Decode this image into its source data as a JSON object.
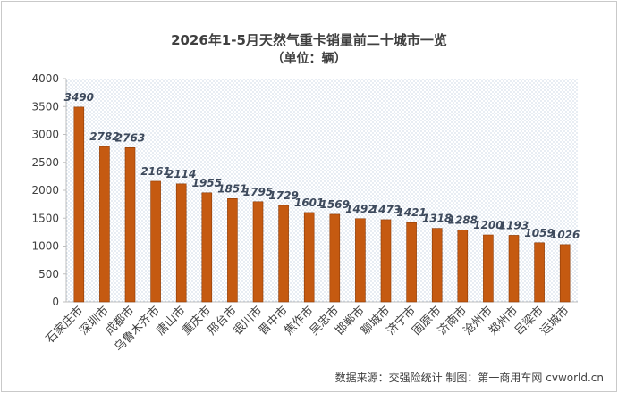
{
  "title": "2026年1-5月天然气重卡销量前二十城市一览",
  "subtitle": "（单位：辆）",
  "source": "数据来源：交强险统计  制图：第一商用车网 cvworld.cn",
  "colors": {
    "bar": "#C55A11",
    "bar_edge": "#8B3A06",
    "label": "#3E4A5C",
    "axis_text": "#404040",
    "plot_bg": "#ECF1F6"
  },
  "chart_data": {
    "type": "bar",
    "categories": [
      "石家庄市",
      "深圳市",
      "成都市",
      "乌鲁木齐市",
      "唐山市",
      "重庆市",
      "邢台市",
      "银川市",
      "晋中市",
      "焦作市",
      "吴忠市",
      "邯郸市",
      "聊城市",
      "济宁市",
      "固原市",
      "济南市",
      "沧州市",
      "郑州市",
      "吕梁市",
      "运城市"
    ],
    "values": [
      3490,
      2782,
      2763,
      2161,
      2114,
      1955,
      1851,
      1795,
      1729,
      1601,
      1569,
      1492,
      1473,
      1421,
      1318,
      1288,
      1200,
      1193,
      1059,
      1026
    ],
    "ylim": [
      0,
      4000
    ],
    "yticks": [
      0,
      500,
      1000,
      1500,
      2000,
      2500,
      3000,
      3500,
      4000
    ],
    "data_labels": true,
    "grid": false
  }
}
